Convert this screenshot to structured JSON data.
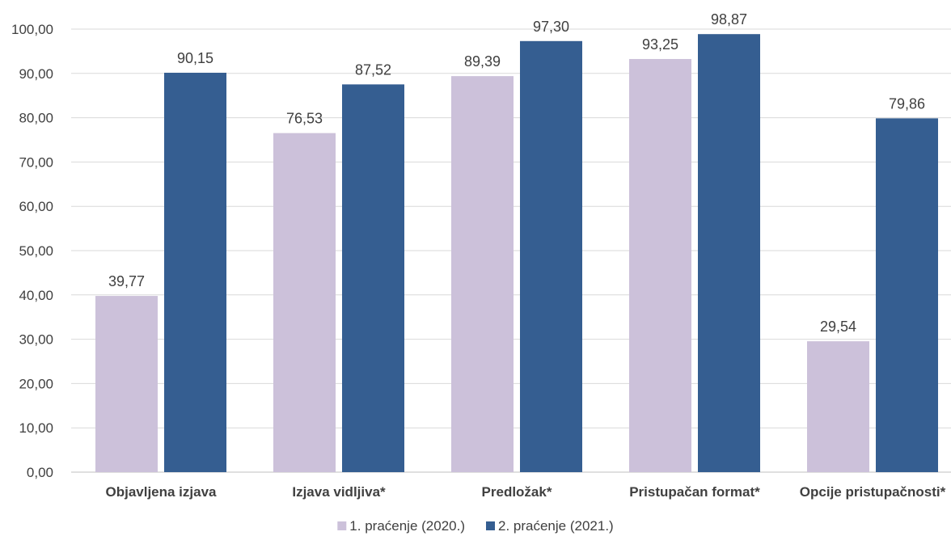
{
  "chart_data": {
    "type": "bar",
    "title": "",
    "xlabel": "",
    "ylabel": "",
    "categories": [
      "Objavljena izjava",
      "Izjava vidljiva*",
      "Predložak*",
      "Pristupačan format*",
      "Opcije pristupačnosti*"
    ],
    "series": [
      {
        "name": "1. praćenje (2020.)",
        "color": "#ccc1da",
        "values": [
          39.77,
          76.53,
          89.39,
          93.25,
          29.54
        ],
        "labels": [
          "39,77",
          "76,53",
          "89,39",
          "93,25",
          "29,54"
        ]
      },
      {
        "name": "2. praćenje (2021.)",
        "color": "#355e91",
        "values": [
          90.15,
          87.52,
          97.3,
          98.87,
          79.86
        ],
        "labels": [
          "90,15",
          "87,52",
          "97,30",
          "98,87",
          "79,86"
        ]
      }
    ],
    "ylim": [
      0,
      100
    ],
    "yticks": [
      0,
      10,
      20,
      30,
      40,
      50,
      60,
      70,
      80,
      90,
      100
    ],
    "ytick_labels": [
      "0,00",
      "10,00",
      "20,00",
      "30,00",
      "40,00",
      "50,00",
      "60,00",
      "70,00",
      "80,00",
      "90,00",
      "100,00"
    ],
    "grid": true,
    "legend_position": "bottom"
  }
}
